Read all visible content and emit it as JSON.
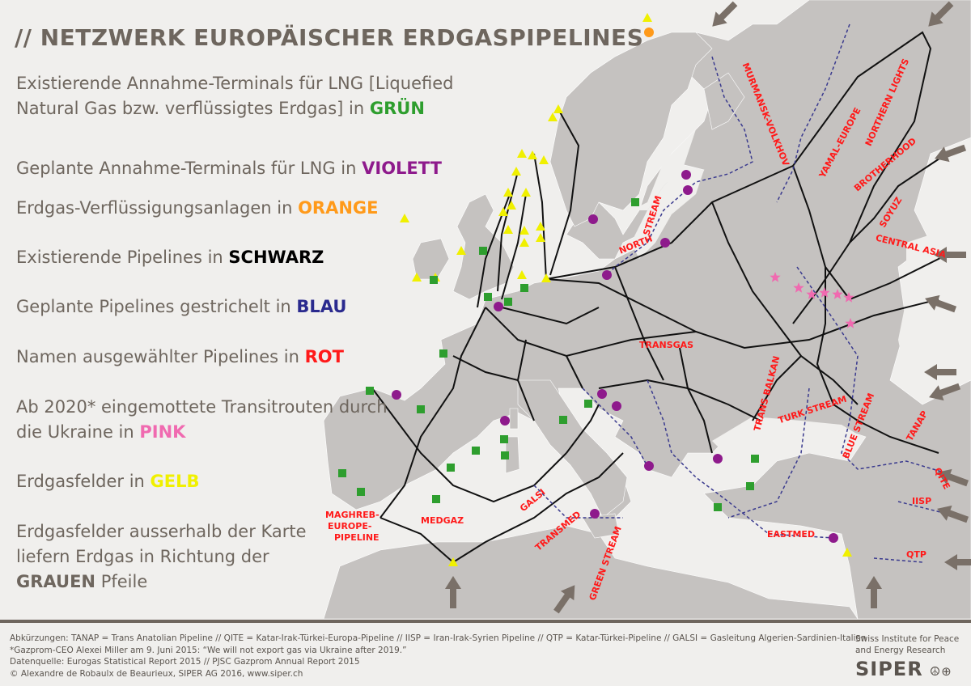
{
  "title": "// NETZWERK EUROPÄISCHER ERDGASPIPELINES",
  "legend": [
    {
      "text": "Existierende Annahme-Terminals für LNG [Liquefied Natural Gas bzw. verflüssigtes Erdgas] in",
      "keyword": "GRÜN",
      "color": "#2e9e2e"
    },
    {
      "text": "Geplante Annahme-Terminals für LNG in",
      "keyword": "VIOLETT",
      "color": "#8e1a8c"
    },
    {
      "text": "Erdgas-Verflüssigungsanlagen in",
      "keyword": "ORANGE",
      "color": "#ff9a1a"
    },
    {
      "text": "Existierende Pipelines in",
      "keyword": "SCHWARZ",
      "color": "#000000"
    },
    {
      "text": "Geplante Pipelines gestrichelt in",
      "keyword": "BLAU",
      "color": "#2a2a8e"
    },
    {
      "text": "Namen ausgewählter Pipelines in",
      "keyword": "ROT",
      "color": "#ff1a1a"
    },
    {
      "text": "Ab 2020* eingemottete Transitrouten durch die Ukraine in",
      "keyword": "PINK",
      "color": "#f06ab0"
    },
    {
      "text": "Erdgasfelder in",
      "keyword": "GELB",
      "color": "#f0f000"
    },
    {
      "text": "Erdgasfelder ausserhalb der Karte liefern Erdgas in Richtung der",
      "keyword": "GRAUEN",
      "suffix": "Pfeile",
      "color": "#6e665e"
    }
  ],
  "pipeline_labels": [
    "MURMANSK-VOLKHOV",
    "YAMAL-EUROPE",
    "NORTHERN LIGHTS",
    "NORTH",
    "STREAM",
    "BROTHERHOOD",
    "SOYUZ",
    "CENTRAL ASIA",
    "TRANSGAS",
    "TRANS BALKAN",
    "TURK STREAM",
    "BLUE STREAM",
    "TANAP",
    "QITE",
    "IISP",
    "QTP",
    "EASTMED",
    "GALSI",
    "TRANSMED",
    "GREEN STREAM",
    "MEDGAZ",
    "MAGHREB-",
    "EUROPE-",
    "PIPELINE"
  ],
  "colors": {
    "land": "#c5c2c0",
    "sea": "#f0efed",
    "pipeline": "#111111",
    "planned": "#3a3a8e",
    "label": "#ff1a1a",
    "arrow": "#7a7068"
  },
  "footer": {
    "lines": [
      "Abkürzungen: TANAP = Trans Anatolian Pipeline // QITE = Katar-Irak-Türkei-Europa-Pipeline // IISP = Iran-Irak-Syrien Pipeline // QTP = Katar-Türkei-Pipeline // GALSI = Gasleitung Algerien-Sardinien-Italien",
      "*Gazprom-CEO Alexei Miller am 9. Juni 2015: “We will not export gas via Ukraine after 2019.”",
      "Datenquelle: Eurogas Statistical Report 2015 // PJSC Gazprom Annual Report 2015",
      "© Alexandre de Robaulx de Beaurieux, SIPER AG 2016, www.siper.ch"
    ],
    "org_line1": "Swiss Institute for Peace",
    "org_line2": "and Energy Research",
    "logo": "SIPER",
    "logo_symbols": "☮⊕"
  }
}
